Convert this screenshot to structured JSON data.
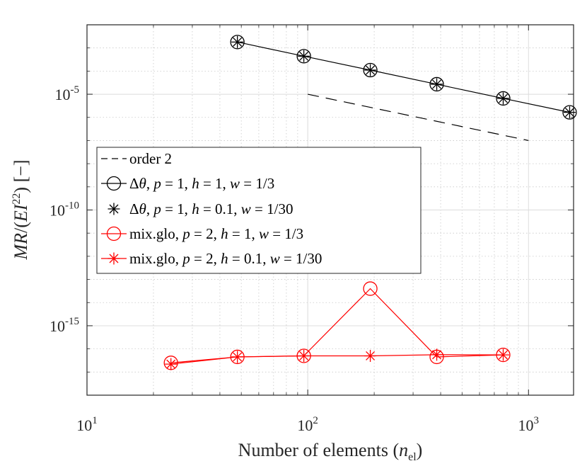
{
  "chart_data": {
    "type": "line",
    "xscale": "log",
    "yscale": "log",
    "xlim": [
      10,
      1600
    ],
    "ylim": [
      1e-18,
      0.01
    ],
    "xticks": [
      {
        "base": "10",
        "exp": "1"
      },
      {
        "base": "10",
        "exp": "2"
      },
      {
        "base": "10",
        "exp": "3"
      }
    ],
    "yticks": [
      {
        "value": 1e-05,
        "base": "10",
        "exp": "-5"
      },
      {
        "value": 1e-10,
        "base": "10",
        "exp": "-10"
      },
      {
        "value": 1e-15,
        "base": "10",
        "exp": "-15"
      }
    ],
    "xlabel": "Number of elements (n_el)",
    "ylabel": "MR/(EI^22) [−]",
    "grid": true,
    "legend_position": "center-left",
    "series": [
      {
        "name": "order 2",
        "color": "#000000",
        "style": "dashed",
        "marker": "none",
        "x": [
          100,
          1000
        ],
        "y": [
          1e-05,
          1e-07
        ]
      },
      {
        "name": "Δθ, p = 1, h = 1, w = 1/3",
        "color": "#000000",
        "style": "solid",
        "marker": "circle",
        "x": [
          48,
          96,
          192,
          384,
          768,
          1536
        ],
        "y": [
          0.0018,
          0.00044,
          0.00011,
          2.7e-05,
          6.6e-06,
          1.65e-06
        ]
      },
      {
        "name": "Δθ, p = 1, h = 0.1, w = 1/30",
        "color": "#000000",
        "style": "none",
        "marker": "asterisk",
        "x": [
          48,
          96,
          192,
          384,
          768,
          1536
        ],
        "y": [
          0.0018,
          0.00044,
          0.00011,
          2.7e-05,
          6.6e-06,
          1.65e-06
        ]
      },
      {
        "name": "mix.glo, p = 2, h = 1, w = 1/3",
        "color": "#ff0000",
        "style": "solid",
        "marker": "circle",
        "x": [
          24,
          48,
          96,
          192,
          384,
          768
        ],
        "y": [
          2.5e-17,
          4.5e-17,
          5e-17,
          4e-14,
          4.5e-17,
          5.5e-17
        ]
      },
      {
        "name": "mix.glo, p = 2, h = 0.1, w = 1/30",
        "color": "#ff0000",
        "style": "solid",
        "marker": "asterisk",
        "x": [
          24,
          48,
          96,
          192,
          384,
          768
        ],
        "y": [
          2.2e-17,
          4.5e-17,
          5e-17,
          5e-17,
          5.6e-17,
          5.5e-17
        ]
      }
    ]
  }
}
